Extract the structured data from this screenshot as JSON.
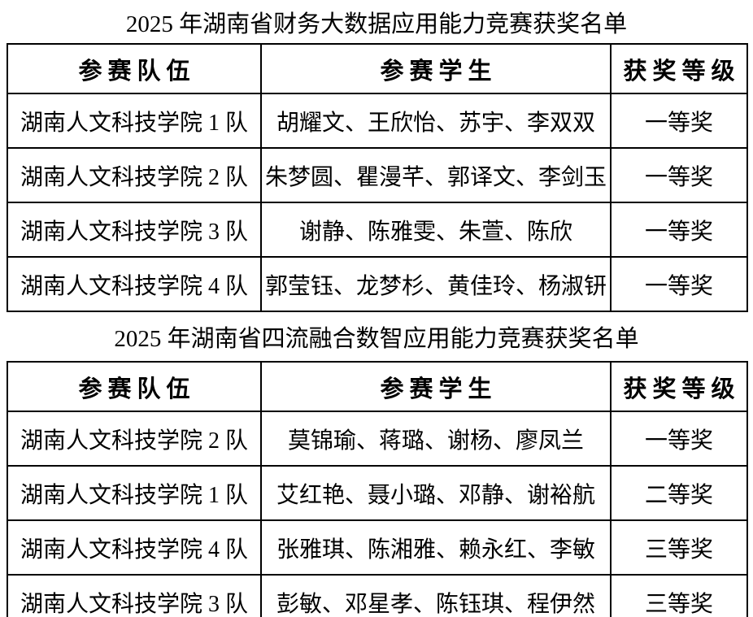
{
  "page": {
    "background_color": "#ffffff",
    "text_color": "#000000",
    "border_color": "#000000"
  },
  "sections": [
    {
      "title": "2025 年湖南省财务大数据应用能力竞赛获奖名单",
      "table": {
        "headers": [
          "参赛队伍",
          "参赛学生",
          "获奖等级"
        ],
        "rows": [
          [
            "湖南人文科技学院 1 队",
            "胡耀文、王欣怡、苏宇、李双双",
            "一等奖"
          ],
          [
            "湖南人文科技学院 2 队",
            "朱梦圆、瞿漫芊、郭译文、李剑玉",
            "一等奖"
          ],
          [
            "湖南人文科技学院 3 队",
            "谢静、陈雅雯、朱萱、陈欣",
            "一等奖"
          ],
          [
            "湖南人文科技学院 4 队",
            "郭莹钰、龙梦杉、黄佳玲、杨淑钘",
            "一等奖"
          ]
        ]
      }
    },
    {
      "title": "2025 年湖南省四流融合数智应用能力竞赛获奖名单",
      "table": {
        "headers": [
          "参赛队伍",
          "参赛学生",
          "获奖等级"
        ],
        "rows": [
          [
            "湖南人文科技学院 2 队",
            "莫锦瑜、蒋璐、谢杨、廖凤兰",
            "一等奖"
          ],
          [
            "湖南人文科技学院 1 队",
            "艾红艳、聂小璐、邓静、谢裕航",
            "二等奖"
          ],
          [
            "湖南人文科技学院 4 队",
            "张雅琪、陈湘雅、赖永红、李敏",
            "三等奖"
          ],
          [
            "湖南人文科技学院 3 队",
            "彭敏、邓星孝、陈钰琪、程伊然",
            "三等奖"
          ]
        ]
      }
    }
  ]
}
